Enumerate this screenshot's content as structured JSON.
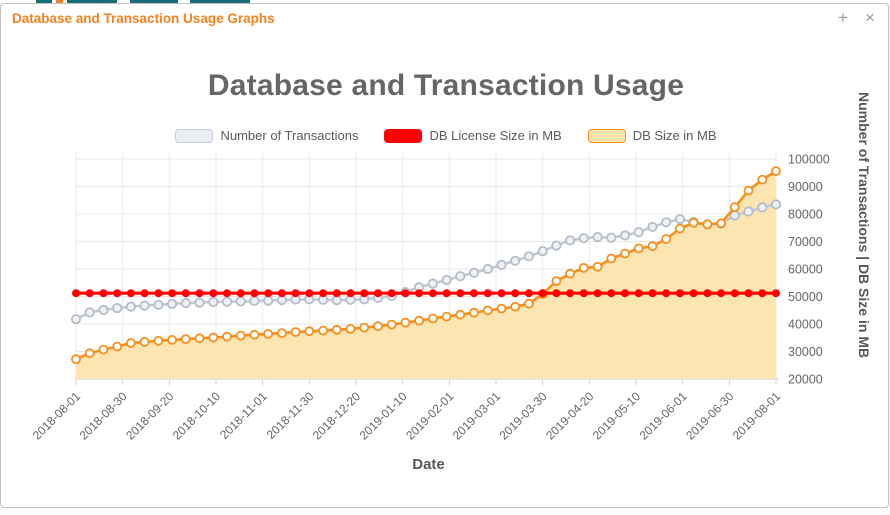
{
  "window": {
    "title": "Database and Transaction Usage Graphs",
    "controls": {
      "expand": "+",
      "close": "×"
    }
  },
  "chart": {
    "title": "Database and Transaction Usage",
    "x_axis_title": "Date",
    "y_axis_title": "Number of Transactions  |  DB Size in MB"
  },
  "chart_data": {
    "type": "line",
    "title": "Database and Transaction Usage",
    "xlabel": "Date",
    "ylabel": "Number of Transactions | DB Size in MB",
    "legend_position": "top",
    "grid": true,
    "ylim": [
      20000,
      102500
    ],
    "y_ticks": [
      20000,
      30000,
      40000,
      50000,
      60000,
      70000,
      80000,
      90000,
      100000
    ],
    "x_tick_labels": [
      "2018-08-01",
      "2018-08-30",
      "2018-09-20",
      "2018-10-10",
      "2018-11-01",
      "2018-11-30",
      "2018-12-20",
      "2019-01-10",
      "2019-02-01",
      "2019-03-01",
      "2019-03-30",
      "2019-04-20",
      "2019-05-10",
      "2019-06-01",
      "2019-06-30",
      "2019-08-01"
    ],
    "colors": {
      "grid": "#e8e8e8",
      "axis": "#cfcfcf",
      "tick_text": "#666666"
    },
    "series": [
      {
        "name": "Number of Transactions",
        "kind": "line",
        "color": "#c3c9d4",
        "marker_fill": "#eef0f4",
        "marker_stroke": "#b6bdca",
        "swatch_fill": "#e9ecf3",
        "swatch_border": "#c6ccd8",
        "values": [
          41800,
          44200,
          45100,
          45800,
          46300,
          46700,
          47000,
          47300,
          47600,
          47800,
          48000,
          48100,
          48200,
          48400,
          48500,
          48700,
          48900,
          49000,
          48800,
          48700,
          48800,
          49000,
          49500,
          50200,
          51600,
          53400,
          54700,
          56000,
          57400,
          58600,
          60000,
          61500,
          63000,
          64600,
          66500,
          68500,
          70400,
          71200,
          71600,
          71400,
          72200,
          73400,
          75300,
          77000,
          78100,
          77100,
          76200,
          76500,
          79500,
          80900,
          82400,
          83500
        ]
      },
      {
        "name": "DB License Size in MB",
        "kind": "line",
        "color": "#fe0000",
        "marker_fill": "#fe0000",
        "marker_stroke": "#fe0000",
        "swatch_fill": "#fe0000",
        "swatch_border": "#fe0000",
        "values": [
          51200,
          51200,
          51200,
          51200,
          51200,
          51200,
          51200,
          51200,
          51200,
          51200,
          51200,
          51200,
          51200,
          51200,
          51200,
          51200,
          51200,
          51200,
          51200,
          51200,
          51200,
          51200,
          51200,
          51200,
          51200,
          51200,
          51200,
          51200,
          51200,
          51200,
          51200,
          51200,
          51200,
          51200,
          51200,
          51200,
          51200,
          51200,
          51200,
          51200,
          51200,
          51200,
          51200,
          51200,
          51200,
          51200,
          51200,
          51200,
          51200,
          51200,
          51200,
          51200
        ]
      },
      {
        "name": "DB Size in MB",
        "kind": "area",
        "color": "#f78f1e",
        "fill": "#fce5b0",
        "marker_fill": "#fffdf6",
        "marker_stroke": "#f78f1e",
        "swatch_fill": "#fce4ae",
        "swatch_border": "#f78f1e",
        "values": [
          27200,
          29400,
          30700,
          31800,
          33100,
          33500,
          33900,
          34200,
          34500,
          34800,
          35100,
          35400,
          35800,
          36100,
          36400,
          36700,
          37100,
          37400,
          37600,
          37900,
          38200,
          38700,
          39200,
          39800,
          40500,
          41200,
          42000,
          42700,
          43400,
          44100,
          44900,
          45600,
          46300,
          47400,
          50900,
          55600,
          58300,
          60400,
          60800,
          63800,
          65600,
          67500,
          68300,
          70900,
          74700,
          76800,
          76200,
          76600,
          82500,
          88500,
          92500,
          95600
        ]
      }
    ]
  }
}
